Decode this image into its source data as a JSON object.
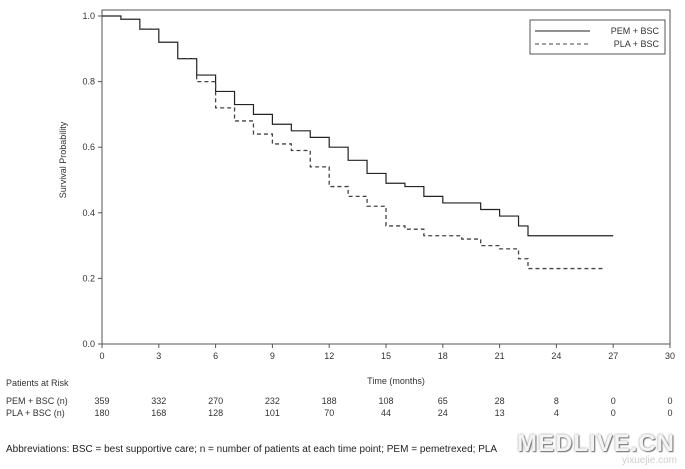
{
  "chart_data": {
    "type": "line",
    "ylabel": "Survival Probability",
    "xlabel": "Time (months)",
    "xlim": [
      0,
      30
    ],
    "ylim": [
      0,
      1
    ],
    "x_ticks": [
      "0",
      "3",
      "6",
      "9",
      "12",
      "15",
      "18",
      "21",
      "24",
      "27",
      "30"
    ],
    "y_ticks": [
      "0.0",
      "0.2",
      "0.4",
      "0.6",
      "0.8",
      "1.0"
    ],
    "grid": false,
    "legend_position": "top-right",
    "series": [
      {
        "name": "PEM + BSC",
        "style": "solid",
        "x": [
          0,
          1,
          2,
          3,
          4,
          5,
          6,
          7,
          8,
          9,
          10,
          11,
          12,
          13,
          14,
          15,
          16,
          17,
          18,
          19,
          20,
          21,
          22,
          22.5,
          27
        ],
        "y": [
          1.0,
          0.99,
          0.96,
          0.92,
          0.87,
          0.82,
          0.77,
          0.73,
          0.7,
          0.67,
          0.65,
          0.63,
          0.6,
          0.56,
          0.52,
          0.49,
          0.48,
          0.45,
          0.43,
          0.43,
          0.41,
          0.39,
          0.36,
          0.33,
          0.33
        ]
      },
      {
        "name": "PLA + BSC",
        "style": "dashed",
        "x": [
          0,
          1,
          2,
          3,
          4,
          5,
          6,
          7,
          8,
          9,
          10,
          11,
          12,
          13,
          14,
          15,
          16,
          17,
          18,
          19,
          20,
          21,
          22,
          22.5,
          26.5
        ],
        "y": [
          1.0,
          0.99,
          0.96,
          0.92,
          0.87,
          0.8,
          0.72,
          0.68,
          0.64,
          0.61,
          0.59,
          0.54,
          0.48,
          0.45,
          0.42,
          0.36,
          0.35,
          0.33,
          0.33,
          0.32,
          0.3,
          0.29,
          0.26,
          0.23,
          0.23
        ]
      }
    ],
    "at_risk": {
      "title": "Patients at Risk",
      "rows": [
        {
          "label": "PEM + BSC (n)",
          "values": [
            "359",
            "332",
            "270",
            "232",
            "188",
            "108",
            "65",
            "28",
            "8",
            "0",
            "0"
          ]
        },
        {
          "label": "PLA + BSC (n)",
          "values": [
            "180",
            "168",
            "128",
            "101",
            "70",
            "44",
            "24",
            "13",
            "4",
            "0",
            "0"
          ]
        }
      ]
    },
    "footnote": "Abbreviations: BSC = best supportive care; n = number of patients at each time point; PEM = pemetrexed; PLA"
  },
  "colors": {
    "pem_line": "#222222",
    "pla_line": "#444444",
    "axis": "#555555"
  },
  "watermark": {
    "primary": "MEDLIVE.CN",
    "secondary": "yixuejie.com"
  }
}
